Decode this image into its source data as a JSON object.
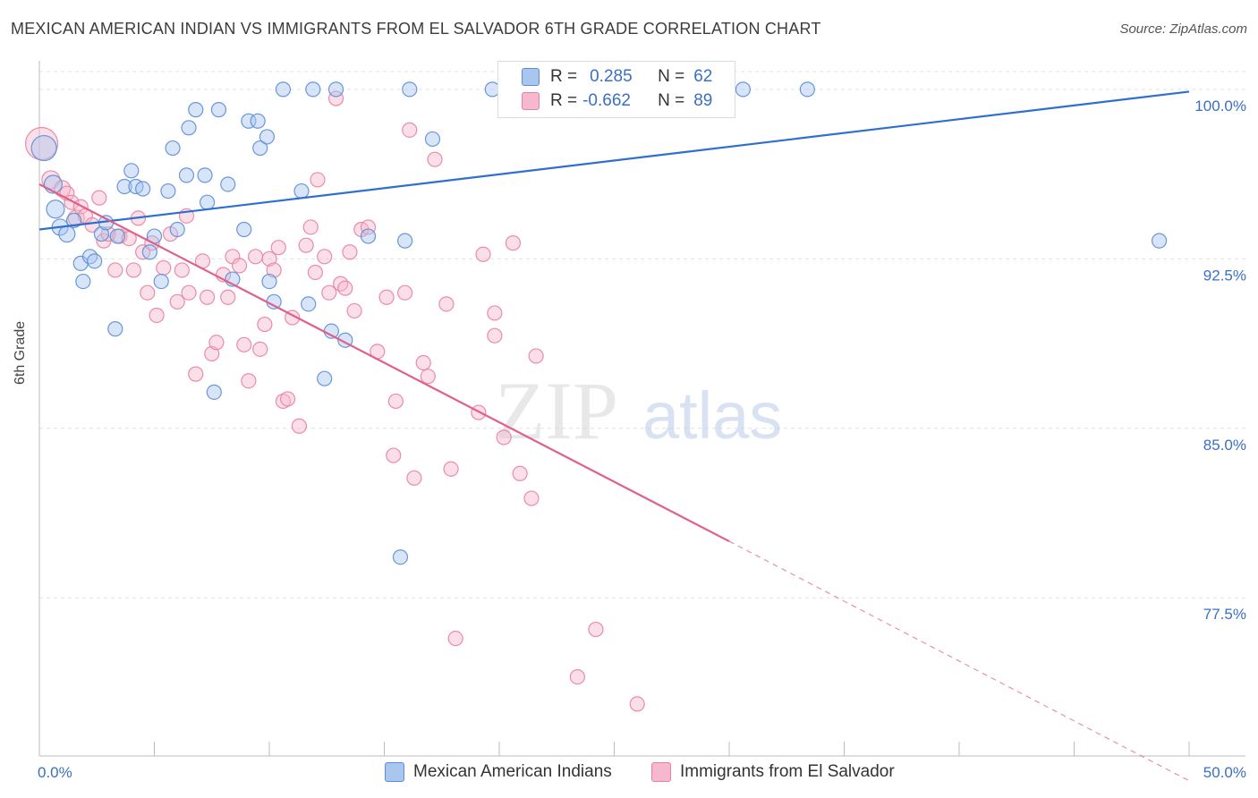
{
  "title": "MEXICAN AMERICAN INDIAN VS IMMIGRANTS FROM EL SALVADOR 6TH GRADE CORRELATION CHART",
  "source": "Source: ZipAtlas.com",
  "watermark": {
    "zip": "ZIP",
    "atlas": "atlas"
  },
  "colors": {
    "blue_fill": "#a9c6ef",
    "blue_stroke": "#5b8dd6",
    "blue_line": "#2f6fcf",
    "pink_fill": "#f6b8cc",
    "pink_stroke": "#e8819f",
    "pink_line": "#e0608a",
    "axis_label": "#3a6fc4"
  },
  "legend": {
    "rows": [
      {
        "r_label": "R =",
        "r_value": "0.285",
        "n_label": "N =",
        "n_value": "62"
      },
      {
        "r_label": "R =",
        "r_value": "-0.662",
        "n_label": "N =",
        "n_value": "89"
      }
    ]
  },
  "chart_data": {
    "type": "scatter",
    "title": "MEXICAN AMERICAN INDIAN VS IMMIGRANTS FROM EL SALVADOR 6TH GRADE CORRELATION CHART",
    "xlabel": "",
    "ylabel": "6th Grade",
    "xlim": [
      0,
      50
    ],
    "ylim": [
      70.5,
      101.5
    ],
    "x_tick_labels": [
      "0.0%",
      "50.0%"
    ],
    "y_ticks": [
      77.5,
      85.0,
      92.5,
      100.0
    ],
    "y_tick_labels": [
      "77.5%",
      "85.0%",
      "92.5%",
      "100.0%"
    ],
    "grid": true,
    "legend_position": "top-center",
    "series": [
      {
        "name": "Mexican American Indians",
        "color": "blue",
        "trend": {
          "x": [
            0,
            50
          ],
          "y": [
            93.8,
            99.9
          ]
        },
        "points": [
          [
            0.2,
            97.4,
            14
          ],
          [
            0.6,
            95.8,
            10
          ],
          [
            0.7,
            94.7,
            10
          ],
          [
            0.9,
            93.9,
            9
          ],
          [
            1.2,
            93.6,
            9
          ],
          [
            1.5,
            94.2,
            8
          ],
          [
            1.8,
            92.3,
            8
          ],
          [
            1.9,
            91.5,
            8
          ],
          [
            2.2,
            92.6,
            8
          ],
          [
            2.4,
            92.4,
            8
          ],
          [
            2.7,
            93.6,
            8
          ],
          [
            2.9,
            94.1,
            8
          ],
          [
            3.3,
            89.4,
            8
          ],
          [
            3.4,
            93.5,
            8
          ],
          [
            3.7,
            95.7,
            8
          ],
          [
            4.0,
            96.4,
            8
          ],
          [
            4.2,
            95.7,
            8
          ],
          [
            4.5,
            95.6,
            8
          ],
          [
            4.8,
            92.8,
            8
          ],
          [
            5.0,
            93.5,
            8
          ],
          [
            5.3,
            91.5,
            8
          ],
          [
            5.6,
            95.5,
            8
          ],
          [
            5.8,
            97.4,
            8
          ],
          [
            6.0,
            93.8,
            8
          ],
          [
            6.4,
            96.2,
            8
          ],
          [
            6.5,
            98.3,
            8
          ],
          [
            6.8,
            99.1,
            8
          ],
          [
            7.2,
            96.2,
            8
          ],
          [
            7.3,
            95.0,
            8
          ],
          [
            7.6,
            86.6,
            8
          ],
          [
            7.8,
            99.1,
            8
          ],
          [
            8.2,
            95.8,
            8
          ],
          [
            8.4,
            91.6,
            8
          ],
          [
            8.9,
            93.8,
            8
          ],
          [
            9.1,
            98.6,
            8
          ],
          [
            9.5,
            98.6,
            8
          ],
          [
            9.6,
            97.4,
            8
          ],
          [
            9.9,
            97.9,
            8
          ],
          [
            10.0,
            91.5,
            8
          ],
          [
            10.2,
            90.6,
            8
          ],
          [
            10.6,
            100.0,
            8
          ],
          [
            11.4,
            95.5,
            8
          ],
          [
            11.7,
            90.5,
            8
          ],
          [
            11.9,
            100.0,
            8
          ],
          [
            12.4,
            87.2,
            8
          ],
          [
            12.7,
            89.3,
            8
          ],
          [
            12.9,
            100.0,
            8
          ],
          [
            13.3,
            88.9,
            8
          ],
          [
            14.3,
            93.5,
            8
          ],
          [
            15.7,
            79.3,
            8
          ],
          [
            15.9,
            93.3,
            8
          ],
          [
            16.1,
            100.0,
            8
          ],
          [
            17.1,
            97.8,
            8
          ],
          [
            19.7,
            100.0,
            8
          ],
          [
            21.8,
            100.0,
            8
          ],
          [
            23.5,
            100.0,
            8
          ],
          [
            25.2,
            100.0,
            8
          ],
          [
            27.0,
            100.0,
            8
          ],
          [
            30.6,
            100.0,
            8
          ],
          [
            33.4,
            100.0,
            8
          ],
          [
            48.7,
            93.3,
            8
          ]
        ]
      },
      {
        "name": "Immigrants from El Salvador",
        "color": "pink",
        "trend": {
          "x": [
            0,
            30
          ],
          "y": [
            95.8,
            80.0
          ]
        },
        "trend_dashed": {
          "x": [
            30,
            50
          ],
          "y": [
            80.0,
            69.4
          ]
        },
        "points": [
          [
            0.1,
            97.6,
            18
          ],
          [
            0.5,
            96.0,
            10
          ],
          [
            1.0,
            95.6,
            9
          ],
          [
            1.2,
            95.4,
            8
          ],
          [
            1.4,
            95.0,
            8
          ],
          [
            1.6,
            94.3,
            9
          ],
          [
            1.8,
            94.8,
            8
          ],
          [
            2.0,
            94.4,
            8
          ],
          [
            2.3,
            94.0,
            8
          ],
          [
            2.6,
            95.2,
            8
          ],
          [
            2.8,
            93.3,
            8
          ],
          [
            3.0,
            93.6,
            8
          ],
          [
            3.3,
            92.0,
            8
          ],
          [
            3.5,
            93.5,
            8
          ],
          [
            3.9,
            93.4,
            8
          ],
          [
            4.1,
            92.0,
            8
          ],
          [
            4.3,
            94.3,
            8
          ],
          [
            4.5,
            92.8,
            8
          ],
          [
            4.7,
            91.0,
            8
          ],
          [
            4.9,
            93.2,
            8
          ],
          [
            5.1,
            90.0,
            8
          ],
          [
            5.4,
            92.1,
            8
          ],
          [
            5.7,
            93.6,
            8
          ],
          [
            6.0,
            90.6,
            8
          ],
          [
            6.2,
            92.0,
            8
          ],
          [
            6.4,
            94.4,
            8
          ],
          [
            6.5,
            91.0,
            8
          ],
          [
            6.8,
            87.4,
            8
          ],
          [
            7.1,
            92.4,
            8
          ],
          [
            7.3,
            90.8,
            8
          ],
          [
            7.5,
            88.3,
            8
          ],
          [
            7.7,
            88.8,
            8
          ],
          [
            8.0,
            91.8,
            8
          ],
          [
            8.2,
            90.8,
            8
          ],
          [
            8.4,
            92.6,
            8
          ],
          [
            8.7,
            92.2,
            8
          ],
          [
            8.9,
            88.7,
            8
          ],
          [
            9.1,
            87.1,
            8
          ],
          [
            9.4,
            92.6,
            8
          ],
          [
            9.6,
            88.5,
            8
          ],
          [
            9.8,
            89.6,
            8
          ],
          [
            10.0,
            92.5,
            8
          ],
          [
            10.2,
            92.0,
            8
          ],
          [
            10.4,
            93.0,
            8
          ],
          [
            10.6,
            86.2,
            8
          ],
          [
            10.8,
            86.3,
            8
          ],
          [
            11.0,
            89.9,
            8
          ],
          [
            11.3,
            85.1,
            8
          ],
          [
            11.6,
            93.1,
            8
          ],
          [
            11.8,
            93.9,
            8
          ],
          [
            12.0,
            91.9,
            8
          ],
          [
            12.1,
            96.0,
            8
          ],
          [
            12.4,
            92.6,
            8
          ],
          [
            12.6,
            91.0,
            8
          ],
          [
            12.9,
            99.6,
            8
          ],
          [
            13.1,
            91.4,
            8
          ],
          [
            13.3,
            91.2,
            8
          ],
          [
            13.5,
            92.8,
            8
          ],
          [
            13.7,
            90.2,
            8
          ],
          [
            14.0,
            93.8,
            8
          ],
          [
            14.3,
            93.9,
            8
          ],
          [
            14.7,
            88.4,
            8
          ],
          [
            15.1,
            90.8,
            8
          ],
          [
            15.4,
            83.8,
            8
          ],
          [
            15.5,
            86.2,
            8
          ],
          [
            15.9,
            91.0,
            8
          ],
          [
            16.1,
            98.2,
            8
          ],
          [
            16.3,
            82.8,
            8
          ],
          [
            16.7,
            87.9,
            8
          ],
          [
            16.9,
            87.3,
            8
          ],
          [
            17.2,
            96.9,
            8
          ],
          [
            17.7,
            90.5,
            8
          ],
          [
            17.9,
            83.2,
            8
          ],
          [
            18.1,
            75.7,
            8
          ],
          [
            19.1,
            85.7,
            8
          ],
          [
            19.3,
            92.7,
            8
          ],
          [
            19.8,
            90.1,
            8
          ],
          [
            19.8,
            89.1,
            8
          ],
          [
            20.2,
            84.6,
            8
          ],
          [
            20.6,
            93.2,
            8
          ],
          [
            20.9,
            83.0,
            8
          ],
          [
            21.4,
            81.9,
            8
          ],
          [
            21.6,
            88.2,
            8
          ],
          [
            23.4,
            74.0,
            8
          ],
          [
            24.2,
            76.1,
            8
          ],
          [
            26.0,
            72.8,
            8
          ]
        ]
      }
    ]
  },
  "bottom_legend": [
    {
      "label": "Mexican American Indians",
      "color": "blue"
    },
    {
      "label": "Immigrants from El Salvador",
      "color": "pink"
    }
  ]
}
